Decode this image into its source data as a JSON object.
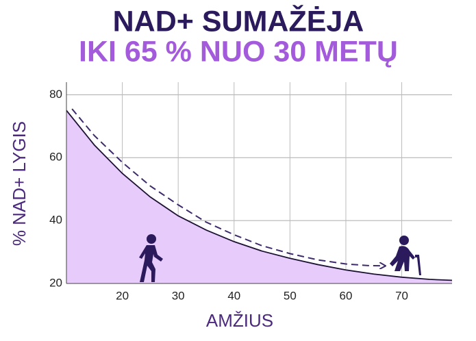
{
  "chart_data": {
    "type": "area",
    "title": "NAD+ SUMAŽĖJA",
    "subtitle": "IKI 65 % NUO 30 METŲ",
    "x_label": "AMŽIUS",
    "y_label": "% NAD+  LYGIS",
    "xlim": [
      10,
      79
    ],
    "ylim": [
      20,
      84
    ],
    "xticks": [
      20,
      30,
      40,
      50,
      60,
      70
    ],
    "yticks": [
      20,
      40,
      60,
      80
    ],
    "grid": true,
    "series": [
      {
        "color": "#e7cbfb",
        "line_color": "#1c1233",
        "x": [
          10,
          15,
          20,
          25,
          30,
          35,
          40,
          45,
          50,
          55,
          60,
          65,
          70,
          75,
          79
        ],
        "values": [
          75,
          64,
          55,
          47.5,
          41.5,
          37,
          33.3,
          30.3,
          28,
          26,
          24.3,
          23,
          22,
          21.3,
          21
        ]
      },
      {
        "color": "#3d2a6b",
        "dashed": true,
        "x": [
          11,
          15,
          20,
          25,
          30,
          35,
          40,
          45,
          50,
          55,
          60,
          64,
          67
        ],
        "values": [
          75.5,
          67,
          58.5,
          51,
          45,
          39.5,
          35.5,
          32,
          29.5,
          27.5,
          26.2,
          25.7,
          25.6
        ]
      }
    ]
  }
}
